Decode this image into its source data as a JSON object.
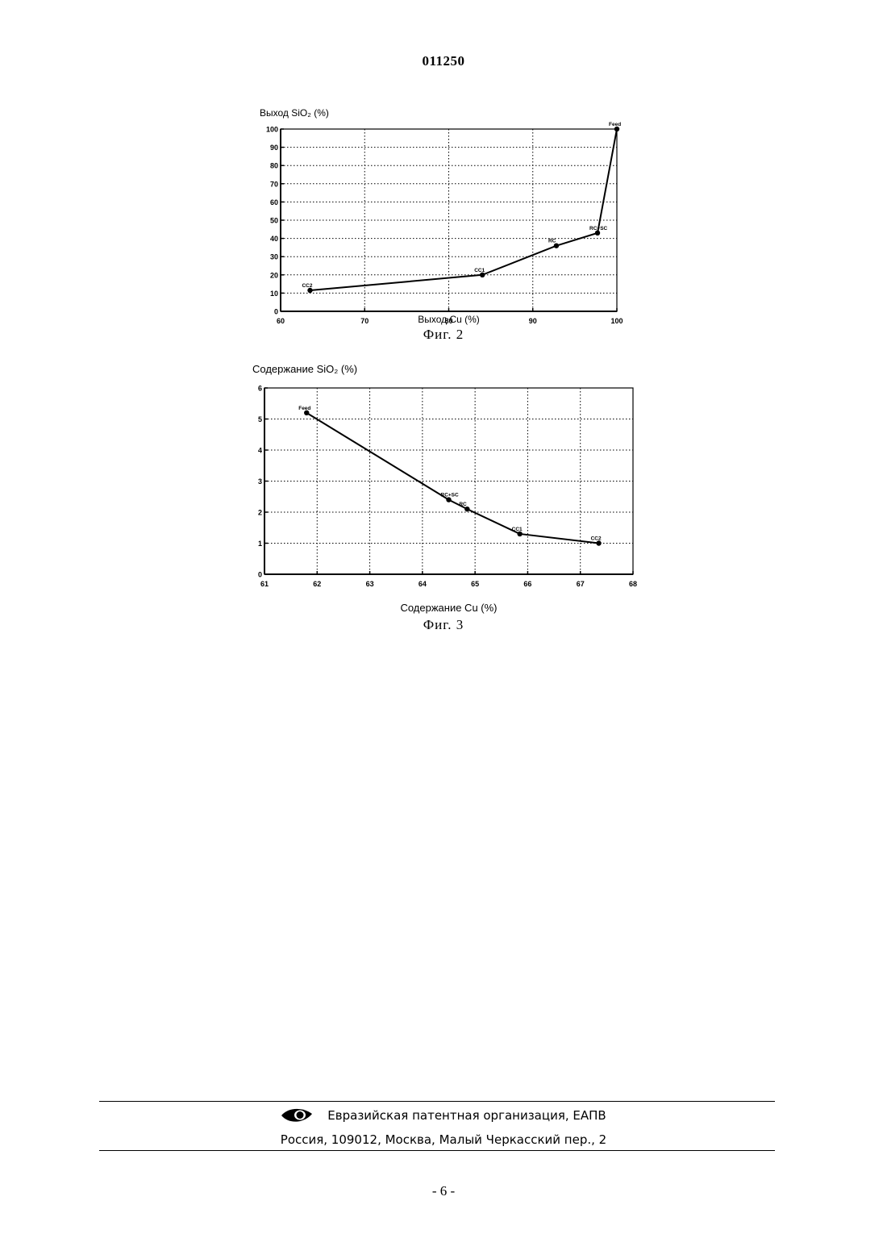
{
  "header": {
    "doc_number": "011250"
  },
  "figures": [
    {
      "caption": "Фиг. 2"
    },
    {
      "caption": "Фиг. 3"
    }
  ],
  "chart_data": [
    {
      "type": "line",
      "title": "",
      "ylabel": "Выход SiO₂ (%)",
      "xlabel": "Выход Cu (%)",
      "xlim": [
        60,
        100
      ],
      "ylim": [
        0,
        100
      ],
      "xticks": [
        60,
        70,
        80,
        90,
        100
      ],
      "yticks": [
        0,
        10,
        20,
        30,
        40,
        50,
        60,
        70,
        80,
        90,
        100
      ],
      "grid": true,
      "points": [
        {
          "label": "CC2",
          "x": 63.5,
          "y": 11.5
        },
        {
          "label": "CC1",
          "x": 84,
          "y": 20
        },
        {
          "label": "RC",
          "x": 92.8,
          "y": 36
        },
        {
          "label": "RC+SC",
          "x": 97.7,
          "y": 43
        },
        {
          "label": "Feed",
          "x": 100,
          "y": 100
        }
      ]
    },
    {
      "type": "line",
      "title": "",
      "ylabel": "Содержание SiO₂ (%)",
      "xlabel": "Содержание Cu (%)",
      "xlim": [
        61,
        68
      ],
      "ylim": [
        0,
        6
      ],
      "xticks": [
        61,
        62,
        63,
        64,
        65,
        66,
        67,
        68
      ],
      "yticks": [
        0,
        1,
        2,
        3,
        4,
        5,
        6
      ],
      "grid": true,
      "points": [
        {
          "label": "Feed",
          "x": 61.8,
          "y": 5.2
        },
        {
          "label": "RC+SC",
          "x": 64.5,
          "y": 2.4
        },
        {
          "label": "RC",
          "x": 64.85,
          "y": 2.1
        },
        {
          "label": "CC1",
          "x": 65.85,
          "y": 1.3
        },
        {
          "label": "CC2",
          "x": 67.35,
          "y": 1.0
        }
      ]
    }
  ],
  "footer": {
    "logo_icon": "eye-logo-icon",
    "org": "Евразийская патентная организация, ЕАПВ",
    "address": "Россия, 109012, Москва, Малый Черкасский пер., 2"
  },
  "page": {
    "number": "- 6 -"
  }
}
